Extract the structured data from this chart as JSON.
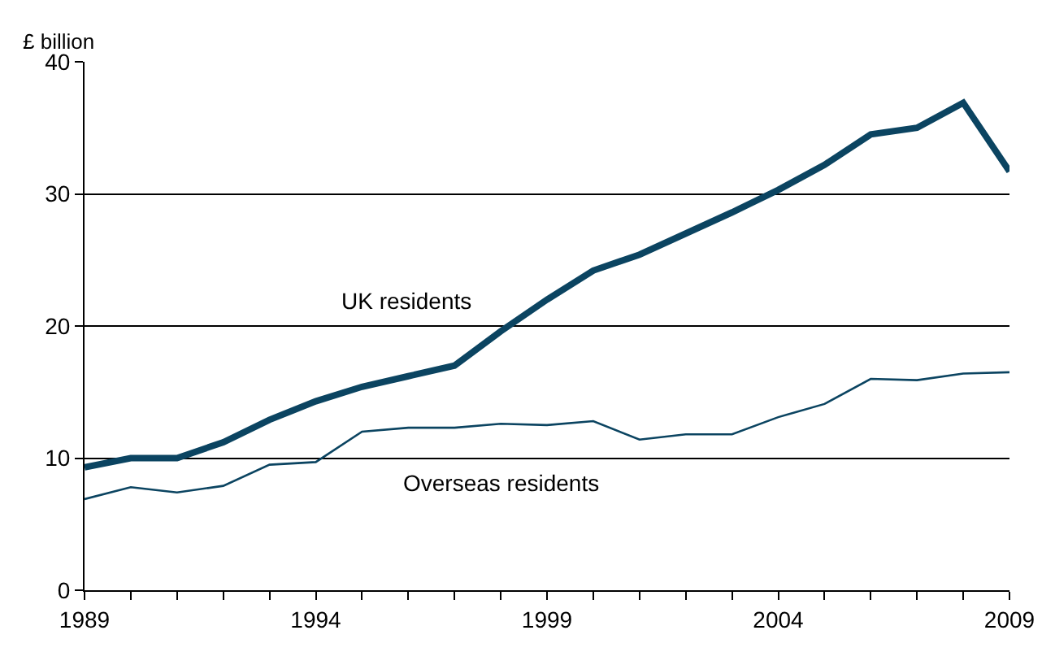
{
  "chart_data": {
    "type": "line",
    "ylabel": "£ billion",
    "x": [
      1989,
      1990,
      1991,
      1992,
      1993,
      1994,
      1995,
      1996,
      1997,
      1998,
      1999,
      2000,
      2001,
      2002,
      2003,
      2004,
      2005,
      2006,
      2007,
      2008,
      2009
    ],
    "series": [
      {
        "name": "UK residents",
        "color": "#0b4461",
        "values": [
          9.3,
          10.0,
          10.0,
          11.2,
          12.9,
          14.3,
          15.4,
          16.2,
          17.0,
          19.6,
          22.0,
          24.2,
          25.4,
          27.0,
          28.6,
          30.3,
          32.2,
          34.5,
          35.0,
          36.9,
          31.7
        ]
      },
      {
        "name": "Overseas residents",
        "color": "#0b4461",
        "values": [
          6.9,
          7.8,
          7.4,
          7.9,
          9.5,
          9.7,
          12.0,
          12.3,
          12.3,
          12.6,
          12.5,
          12.8,
          11.4,
          11.8,
          11.8,
          13.1,
          14.1,
          16.0,
          15.9,
          16.4,
          16.5
        ]
      }
    ],
    "xlim": [
      1989,
      2009
    ],
    "xticks": [
      1989,
      {
        "value": 1990,
        "label": null
      },
      {
        "value": 1991,
        "label": null
      },
      {
        "value": 1992,
        "label": null
      },
      {
        "value": 1993,
        "label": null
      },
      1994,
      {
        "value": 1995,
        "label": null
      },
      {
        "value": 1996,
        "label": null
      },
      {
        "value": 1997,
        "label": null
      },
      {
        "value": 1998,
        "label": null
      },
      1999,
      {
        "value": 2000,
        "label": null
      },
      {
        "value": 2001,
        "label": null
      },
      {
        "value": 2002,
        "label": null
      },
      {
        "value": 2003,
        "label": null
      },
      2004,
      {
        "value": 2005,
        "label": null
      },
      {
        "value": 2006,
        "label": null
      },
      {
        "value": 2007,
        "label": null
      },
      {
        "value": 2008,
        "label": null
      },
      2009
    ],
    "ylim": [
      0,
      40
    ],
    "yticks": [
      0,
      10,
      20,
      30,
      40
    ],
    "grid": "y",
    "legend": false,
    "marker": "none",
    "line_style": "solid"
  }
}
